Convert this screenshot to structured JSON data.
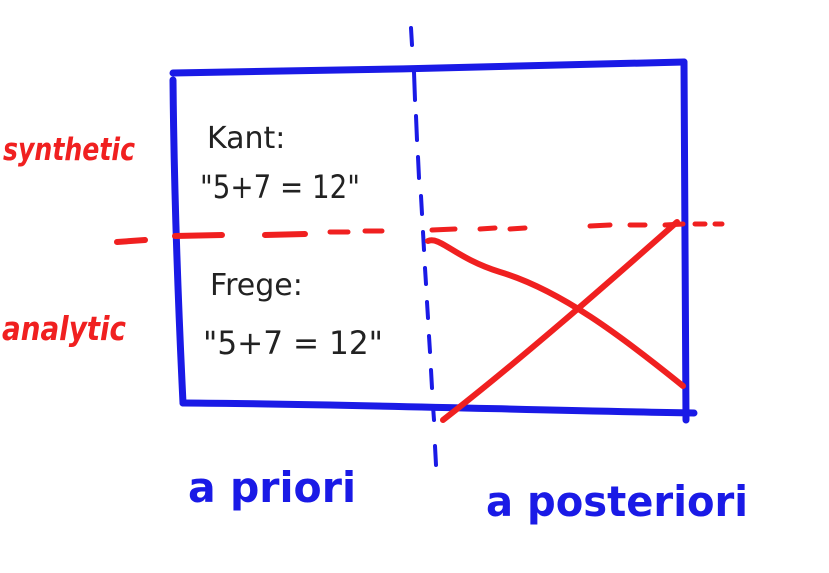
{
  "colors": {
    "blue": "#1a1ae6",
    "red": "#f02020",
    "black": "#222222",
    "background": "#ffffff"
  },
  "row_labels": {
    "top": "synthetic",
    "bottom": "analytic"
  },
  "column_labels": {
    "left": "a priori",
    "right": "a posteriori"
  },
  "cells": {
    "top_left": {
      "author": "Kant:",
      "statement": "\"5+7 = 12\""
    },
    "bottom_left": {
      "author": "Frege:",
      "statement": "\"5+7 = 12\""
    },
    "bottom_right": {
      "crossed_out": true
    }
  }
}
